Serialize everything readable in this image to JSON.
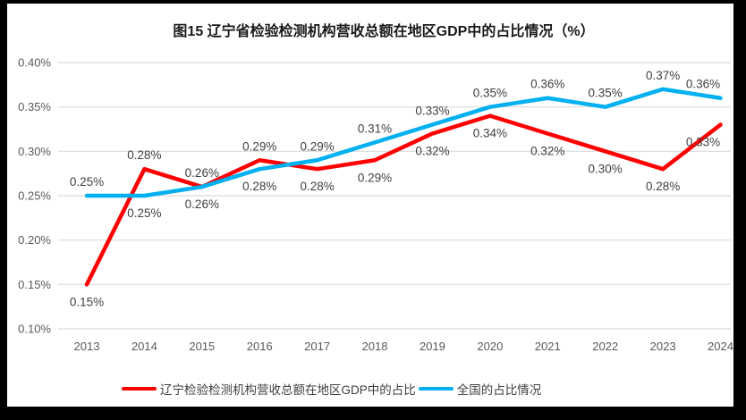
{
  "frame": {
    "border_color": "#000000",
    "background": "#FFFFFF"
  },
  "title": "图15 辽宁省检验检测机构营收总额在地区GDP中的占比情况（%）",
  "chart_data": {
    "type": "line",
    "title": "图15 辽宁省检验检测机构营收总额在地区GDP中的占比情况（%）",
    "categories": [
      "2013",
      "2014",
      "2015",
      "2016",
      "2017",
      "2018",
      "2019",
      "2020",
      "2021",
      "2022",
      "2023",
      "2024"
    ],
    "series": [
      {
        "name": "辽宁检验检测机构营收总额在地区GDP中的占比",
        "color": "#FF0000",
        "values": [
          0.15,
          0.28,
          0.26,
          0.29,
          0.28,
          0.29,
          0.32,
          0.34,
          0.32,
          0.3,
          0.28,
          0.33
        ],
        "labels": [
          "0.15%",
          "0.28%",
          "0.26%",
          "0.29%",
          "0.28%",
          "0.29%",
          "0.32%",
          "0.34%",
          "0.32%",
          "0.30%",
          "0.28%",
          "0.33%"
        ],
        "label_positions": [
          "below",
          "above",
          "above",
          "above",
          "below",
          "below",
          "below",
          "below",
          "below",
          "below",
          "below",
          "below"
        ]
      },
      {
        "name": "全国的占比情况",
        "color": "#00B0F0",
        "values": [
          0.25,
          0.25,
          0.26,
          0.28,
          0.29,
          0.31,
          0.33,
          0.35,
          0.36,
          0.35,
          0.37,
          0.36
        ],
        "labels": [
          "0.25%",
          "0.25%",
          "0.26%",
          "0.28%",
          "0.29%",
          "0.31%",
          "0.33%",
          "0.35%",
          "0.36%",
          "0.35%",
          "0.37%",
          "0.36%"
        ],
        "label_positions": [
          "above",
          "below",
          "below",
          "below",
          "above",
          "above",
          "above",
          "above",
          "above",
          "above",
          "above",
          "above"
        ]
      }
    ],
    "xlabel": "",
    "ylabel": "",
    "ylim": [
      0.1,
      0.4
    ],
    "yticks": [
      0.4,
      0.35,
      0.3,
      0.25,
      0.2,
      0.15,
      0.1
    ],
    "yticklabels": [
      "0.40%",
      "0.35%",
      "0.30%",
      "0.25%",
      "0.20%",
      "0.15%",
      "0.10%"
    ],
    "value_suffix": "%",
    "grid": true,
    "legend_position": "bottom",
    "colors": {
      "gridline": "#D9D9D9",
      "axis_text": "#595959",
      "data_label": "#404040",
      "title_text": "#1A1A1A"
    }
  }
}
